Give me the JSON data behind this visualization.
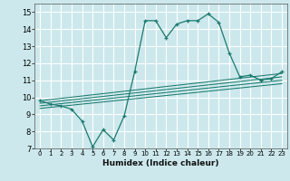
{
  "title": "",
  "xlabel": "Humidex (Indice chaleur)",
  "background_color": "#cce8ec",
  "line_color": "#1a7a6e",
  "grid_color": "#ffffff",
  "xlim": [
    -0.5,
    23.5
  ],
  "ylim": [
    7,
    15.5
  ],
  "yticks": [
    7,
    8,
    9,
    10,
    11,
    12,
    13,
    14,
    15
  ],
  "xticks": [
    0,
    1,
    2,
    3,
    4,
    5,
    6,
    7,
    8,
    9,
    10,
    11,
    12,
    13,
    14,
    15,
    16,
    17,
    18,
    19,
    20,
    21,
    22,
    23
  ],
  "main_x": [
    0,
    1,
    2,
    3,
    4,
    5,
    6,
    7,
    8,
    9,
    10,
    11,
    12,
    13,
    14,
    15,
    16,
    17,
    18,
    19,
    20,
    21,
    22,
    23
  ],
  "main_y": [
    9.8,
    9.6,
    9.5,
    9.3,
    8.6,
    7.1,
    8.1,
    7.5,
    8.9,
    11.5,
    14.5,
    14.5,
    13.5,
    14.3,
    14.5,
    14.5,
    14.9,
    14.4,
    12.6,
    11.2,
    11.3,
    11.0,
    11.1,
    11.5
  ],
  "trend_lines": [
    [
      [
        0,
        23
      ],
      [
        9.8,
        11.4
      ]
    ],
    [
      [
        0,
        23
      ],
      [
        9.65,
        11.2
      ]
    ],
    [
      [
        0,
        23
      ],
      [
        9.5,
        11.0
      ]
    ],
    [
      [
        0,
        23
      ],
      [
        9.35,
        10.8
      ]
    ]
  ]
}
